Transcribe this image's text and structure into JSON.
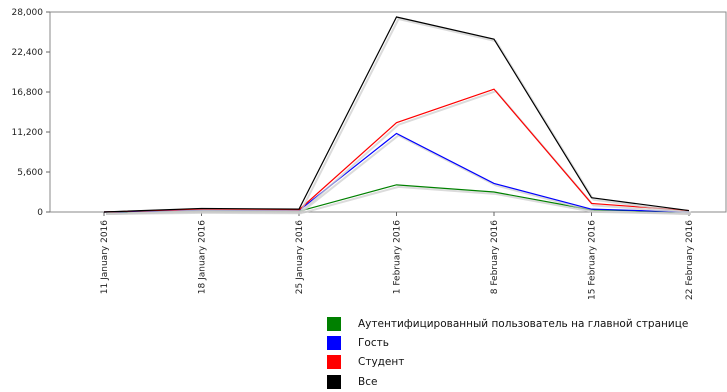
{
  "chart_data": {
    "type": "line",
    "categories": [
      "11 January 2016",
      "18 January 2016",
      "25 January 2016",
      "1 February 2016",
      "8 February 2016",
      "15 February 2016",
      "22 February 2016"
    ],
    "y_ticks": [
      "0",
      "5,600",
      "11,200",
      "16,800",
      "22,400",
      "28,000"
    ],
    "ylim": [
      0,
      28000
    ],
    "grid": false,
    "legend_position": "bottom",
    "series": [
      {
        "name": "Аутентифицированный пользователь на главной странице",
        "color": "#008000",
        "values": [
          0,
          150,
          100,
          3800,
          2800,
          300,
          0
        ]
      },
      {
        "name": "Гость",
        "color": "#0000ff",
        "values": [
          0,
          300,
          200,
          11000,
          4000,
          400,
          0
        ]
      },
      {
        "name": "Студент",
        "color": "#ff0000",
        "values": [
          0,
          400,
          300,
          12500,
          17200,
          1200,
          200
        ]
      },
      {
        "name": "Все",
        "color": "#000000",
        "values": [
          0,
          500,
          400,
          27300,
          24200,
          2000,
          200
        ]
      }
    ]
  }
}
